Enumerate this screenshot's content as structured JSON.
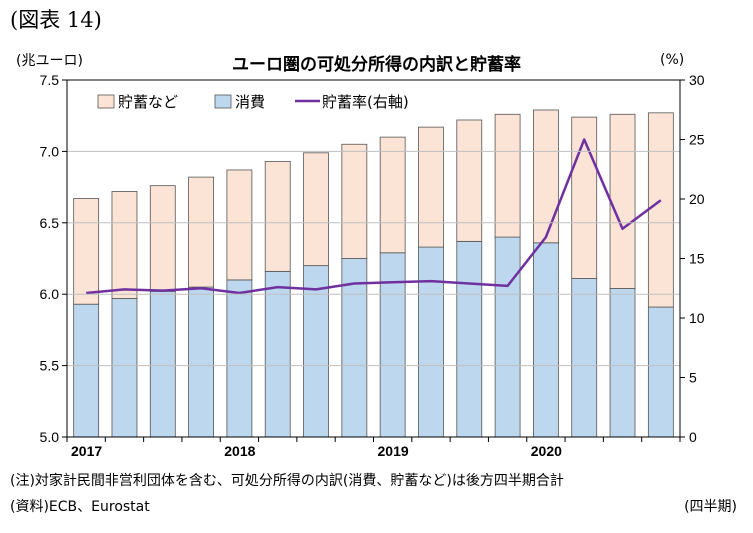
{
  "figure_label": "(図表 14)",
  "chart_data": {
    "type": "bar",
    "title": "ユーロ圏の可処分所得の内訳と貯蓄率",
    "ylabel_left": "(兆ユーロ)",
    "ylabel_right": "(%)",
    "ylim_left": [
      5.0,
      7.5
    ],
    "yticks_left": [
      "5.0",
      "5.5",
      "6.0",
      "6.5",
      "7.0",
      "7.5"
    ],
    "ylim_right": [
      0,
      30
    ],
    "yticks_right": [
      "0",
      "5",
      "10",
      "15",
      "20",
      "25",
      "30"
    ],
    "x_labels": [
      {
        "label": "2017",
        "index": 0
      },
      {
        "label": "2018",
        "index": 4
      },
      {
        "label": "2019",
        "index": 8
      },
      {
        "label": "2020",
        "index": 12
      }
    ],
    "legend": {
      "savings": "貯蓄など",
      "consumption": "消費",
      "rate": "貯蓄率(右軸)"
    },
    "colors": {
      "savings": "#fbe4d5",
      "consumption": "#bdd7ee",
      "rate": "#7030a0",
      "border": "#555555"
    },
    "series": [
      {
        "name": "消費",
        "values": [
          5.93,
          5.97,
          6.02,
          6.05,
          6.1,
          6.16,
          6.2,
          6.25,
          6.29,
          6.33,
          6.37,
          6.4,
          6.36,
          6.11,
          6.04,
          5.91
        ]
      },
      {
        "name": "貯蓄など",
        "values": [
          0.74,
          0.75,
          0.74,
          0.77,
          0.77,
          0.77,
          0.79,
          0.8,
          0.81,
          0.84,
          0.85,
          0.86,
          0.93,
          1.13,
          1.22,
          1.36
        ]
      }
    ],
    "totals": [
      6.67,
      6.72,
      6.76,
      6.82,
      6.87,
      6.93,
      6.99,
      7.05,
      7.1,
      7.17,
      7.22,
      7.26,
      7.29,
      7.24,
      7.26,
      7.27
    ],
    "savings_rate": [
      12.1,
      12.4,
      12.3,
      12.5,
      12.1,
      12.6,
      12.4,
      12.9,
      13.0,
      13.1,
      12.9,
      12.7,
      16.8,
      25.0,
      17.5,
      19.9
    ]
  },
  "notes": {
    "note1": "(注)対家計民間非営利団体を含む、可処分所得の内訳(消費、貯蓄など)は後方四半期合計",
    "source": "(資料)ECB、Eurostat",
    "frequency": "(四半期)"
  }
}
